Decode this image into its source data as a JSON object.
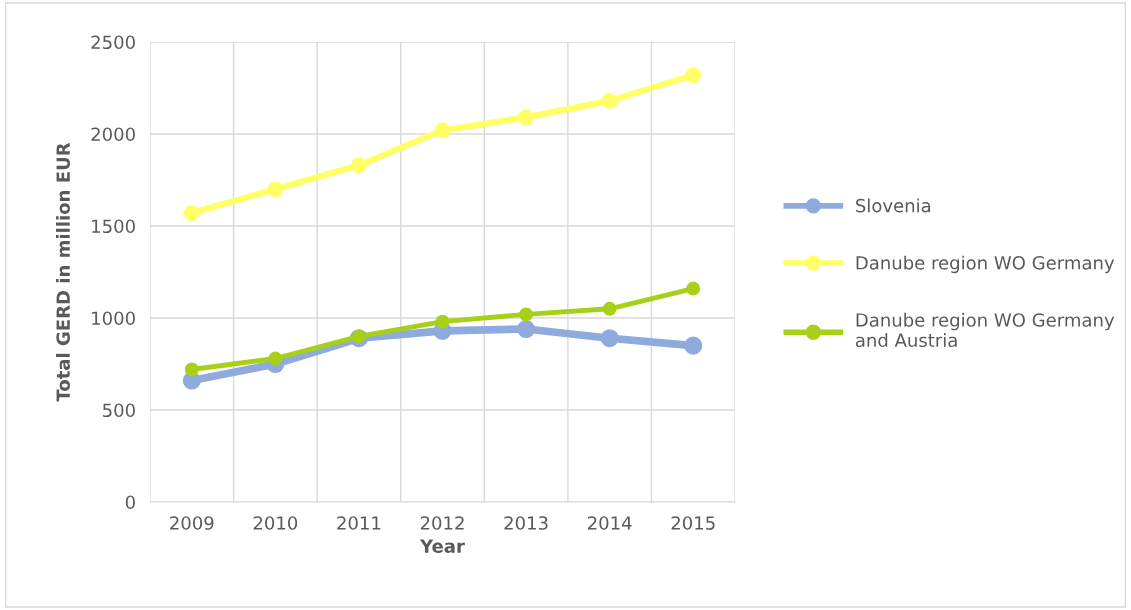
{
  "chart_data": {
    "type": "line",
    "xlabel": "Year",
    "ylabel": "Total GERD in million EUR",
    "categories": [
      "2009",
      "2010",
      "2011",
      "2012",
      "2013",
      "2014",
      "2015"
    ],
    "series": [
      {
        "name": "Slovenia",
        "color": "#8faadc",
        "values": [
          660,
          750,
          890,
          930,
          940,
          890,
          850
        ]
      },
      {
        "name": "Danube region WO Germany",
        "color": "#ffff66",
        "values": [
          1570,
          1700,
          1830,
          2020,
          2090,
          2180,
          2320
        ]
      },
      {
        "name": "Danube region WO Germany and Austria",
        "color": "#a9d018",
        "values": [
          720,
          780,
          900,
          980,
          1020,
          1050,
          1160
        ]
      }
    ],
    "ylim": [
      0,
      2500
    ],
    "yticks": [
      0,
      500,
      1000,
      1500,
      2000,
      2500
    ],
    "grid": true,
    "legend": "right",
    "marker": "circle",
    "line_style": "solid"
  }
}
